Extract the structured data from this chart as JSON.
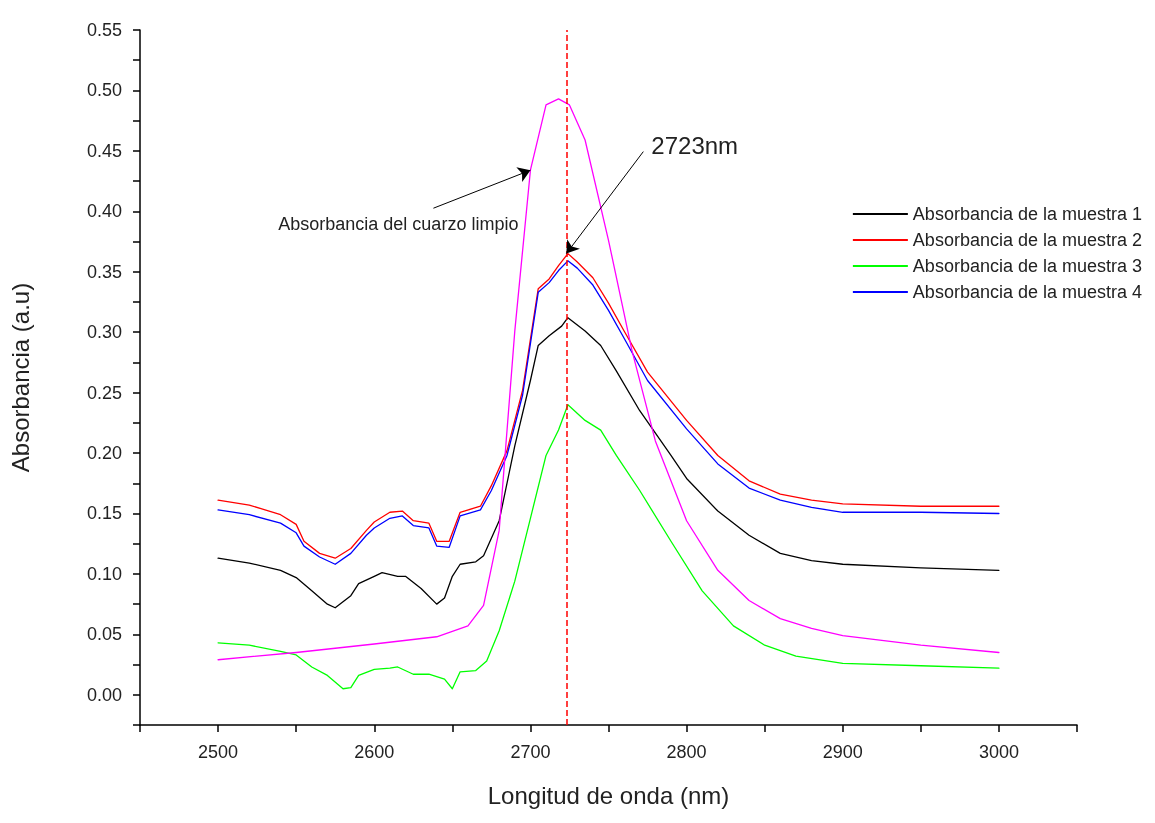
{
  "chart_data": {
    "type": "line",
    "xlabel": "Longitud de onda (nm)",
    "ylabel": "Absorbancia (a.u)",
    "xlim": [
      2450,
      3050
    ],
    "xticks": [
      {
        "value": 2450,
        "label": null
      },
      2500,
      {
        "value": 2550,
        "label": null
      },
      2600,
      {
        "value": 2650,
        "label": null
      },
      2700,
      {
        "value": 2750,
        "label": null
      },
      2800,
      {
        "value": 2850,
        "label": null
      },
      2900,
      {
        "value": 2950,
        "label": null
      },
      3000,
      {
        "value": 3050,
        "label": null
      }
    ],
    "ylim": [
      -0.025,
      0.55
    ],
    "yticks": [
      {
        "value": -0.025,
        "label": null
      },
      {
        "value": 0,
        "label": "0.00"
      },
      {
        "value": 0.025,
        "label": null
      },
      {
        "value": 0.05,
        "label": "0.05"
      },
      {
        "value": 0.075,
        "label": null
      },
      {
        "value": 0.1,
        "label": "0.10"
      },
      {
        "value": 0.125,
        "label": null
      },
      {
        "value": 0.15,
        "label": "0.15"
      },
      {
        "value": 0.175,
        "label": null
      },
      {
        "value": 0.2,
        "label": "0.20"
      },
      {
        "value": 0.225,
        "label": null
      },
      {
        "value": 0.25,
        "label": "0.25"
      },
      {
        "value": 0.275,
        "label": null
      },
      {
        "value": 0.3,
        "label": "0.30"
      },
      {
        "value": 0.325,
        "label": null
      },
      {
        "value": 0.35,
        "label": "0.35"
      },
      {
        "value": 0.375,
        "label": null
      },
      {
        "value": 0.4,
        "label": "0.40"
      },
      {
        "value": 0.425,
        "label": null
      },
      {
        "value": 0.45,
        "label": "0.45"
      },
      {
        "value": 0.475,
        "label": null
      },
      {
        "value": 0.5,
        "label": "0.50"
      },
      {
        "value": 0.525,
        "label": null
      },
      {
        "value": 0.55,
        "label": "0.55"
      }
    ],
    "grid": false,
    "legend": "right",
    "marker": "none",
    "line_style": "solid",
    "series": [
      {
        "name": "Absorbancia de la muestra 1",
        "color": "#000000",
        "x": [
          2500,
          2520,
          2540,
          2550,
          2560,
          2570,
          2575,
          2585,
          2590,
          2600,
          2605,
          2615,
          2620,
          2630,
          2640,
          2645,
          2650,
          2655,
          2665,
          2670,
          2680,
          2690,
          2700,
          2705,
          2712,
          2720,
          2724,
          2735,
          2745,
          2755,
          2770,
          2790,
          2800,
          2820,
          2840,
          2860,
          2880,
          2900,
          2950,
          3000
        ],
        "values": [
          0.113,
          0.109,
          0.103,
          0.097,
          0.086,
          0.075,
          0.072,
          0.082,
          0.092,
          0.098,
          0.101,
          0.098,
          0.098,
          0.088,
          0.075,
          0.08,
          0.098,
          0.108,
          0.11,
          0.115,
          0.144,
          0.206,
          0.26,
          0.289,
          0.297,
          0.305,
          0.312,
          0.301,
          0.289,
          0.268,
          0.235,
          0.198,
          0.179,
          0.152,
          0.132,
          0.117,
          0.111,
          0.108,
          0.105,
          0.103
        ]
      },
      {
        "name": "Absorbancia de la muestra 2",
        "color": "#ff0000",
        "x": [
          2500,
          2520,
          2540,
          2550,
          2555,
          2565,
          2575,
          2585,
          2595,
          2600,
          2610,
          2618,
          2625,
          2635,
          2640,
          2648,
          2655,
          2668,
          2675,
          2685,
          2695,
          2705,
          2712,
          2718,
          2724,
          2730,
          2740,
          2750,
          2760,
          2775,
          2800,
          2820,
          2840,
          2860,
          2880,
          2900,
          2950,
          3000
        ],
        "values": [
          0.161,
          0.157,
          0.149,
          0.141,
          0.127,
          0.117,
          0.113,
          0.121,
          0.136,
          0.143,
          0.151,
          0.152,
          0.144,
          0.142,
          0.127,
          0.127,
          0.151,
          0.156,
          0.173,
          0.202,
          0.252,
          0.336,
          0.344,
          0.355,
          0.365,
          0.358,
          0.345,
          0.324,
          0.301,
          0.267,
          0.227,
          0.198,
          0.177,
          0.166,
          0.161,
          0.158,
          0.156,
          0.156
        ]
      },
      {
        "name": "Absorbancia de la muestra 3",
        "color": "#00ff00",
        "x": [
          2500,
          2520,
          2540,
          2550,
          2560,
          2570,
          2580,
          2585,
          2590,
          2600,
          2610,
          2615,
          2625,
          2635,
          2645,
          2650,
          2655,
          2665,
          2672,
          2680,
          2690,
          2700,
          2710,
          2718,
          2724,
          2735,
          2745,
          2755,
          2770,
          2790,
          2810,
          2830,
          2850,
          2870,
          2900,
          2950,
          3000
        ],
        "values": [
          0.043,
          0.041,
          0.036,
          0.033,
          0.023,
          0.016,
          0.005,
          0.006,
          0.016,
          0.021,
          0.022,
          0.023,
          0.017,
          0.017,
          0.013,
          0.005,
          0.019,
          0.02,
          0.028,
          0.053,
          0.094,
          0.146,
          0.198,
          0.219,
          0.24,
          0.227,
          0.219,
          0.198,
          0.169,
          0.127,
          0.086,
          0.057,
          0.041,
          0.032,
          0.026,
          0.024,
          0.022
        ]
      },
      {
        "name": "Absorbancia de la muestra 4",
        "color": "#0000ff",
        "x": [
          2500,
          2520,
          2540,
          2550,
          2555,
          2565,
          2575,
          2585,
          2595,
          2600,
          2610,
          2618,
          2625,
          2635,
          2640,
          2648,
          2655,
          2668,
          2675,
          2685,
          2695,
          2705,
          2712,
          2718,
          2724,
          2730,
          2740,
          2750,
          2760,
          2775,
          2800,
          2820,
          2840,
          2860,
          2880,
          2900,
          2950,
          3000
        ],
        "values": [
          0.153,
          0.149,
          0.142,
          0.134,
          0.123,
          0.114,
          0.108,
          0.117,
          0.132,
          0.138,
          0.146,
          0.148,
          0.14,
          0.138,
          0.123,
          0.122,
          0.148,
          0.153,
          0.169,
          0.198,
          0.248,
          0.333,
          0.341,
          0.351,
          0.359,
          0.353,
          0.339,
          0.318,
          0.295,
          0.26,
          0.22,
          0.191,
          0.171,
          0.161,
          0.155,
          0.151,
          0.151,
          0.15
        ]
      },
      {
        "color": "#ff00ff",
        "x": [
          2500,
          2550,
          2600,
          2640,
          2660,
          2670,
          2680,
          2690,
          2700,
          2710,
          2718,
          2725,
          2735,
          2750,
          2765,
          2780,
          2800,
          2820,
          2840,
          2860,
          2880,
          2900,
          2950,
          3000
        ],
        "values": [
          0.029,
          0.035,
          0.042,
          0.048,
          0.057,
          0.074,
          0.136,
          0.301,
          0.434,
          0.488,
          0.493,
          0.488,
          0.459,
          0.376,
          0.285,
          0.21,
          0.144,
          0.103,
          0.078,
          0.063,
          0.055,
          0.049,
          0.041,
          0.035
        ]
      }
    ],
    "ref_lines": [
      {
        "axis": "x",
        "value": 2723,
        "label": null,
        "color": "#ff0000",
        "line_style": "dashed"
      }
    ],
    "annotations": [
      {
        "text": "Absorbancia del cuarzo limpio",
        "x": 2700,
        "y": 0.434
      },
      {
        "text": "2723nm",
        "x": 2723,
        "y": 0.365
      }
    ]
  }
}
